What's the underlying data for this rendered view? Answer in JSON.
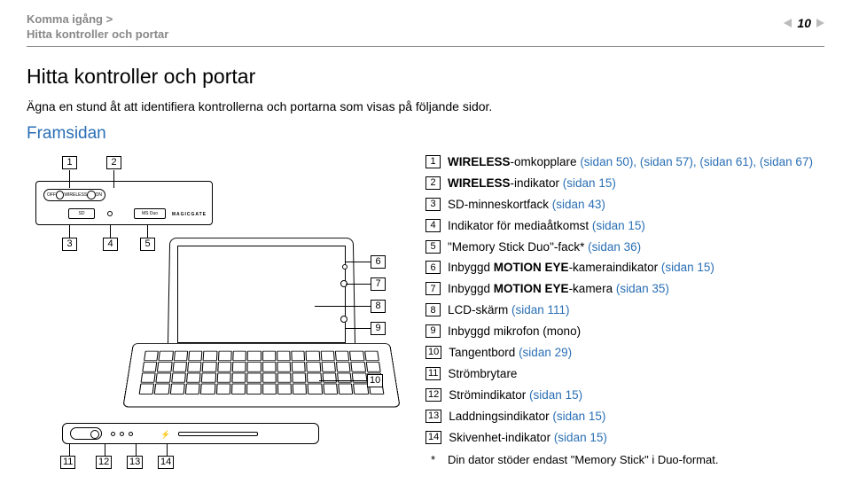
{
  "header": {
    "line1": "Komma igång >",
    "line2": "Hitta kontroller och portar",
    "page_number": "10"
  },
  "title": "Hitta kontroller och portar",
  "intro": "Ägna en stund åt att identifiera kontrollerna och portarna som visas på följande sidor.",
  "section": "Framsidan",
  "link_color": "#2a6fb5",
  "items": [
    {
      "n": "1",
      "pre": "",
      "b": "WIRELESS",
      "post": "-omkopplare ",
      "links": "(sidan 50), (sidan 57), (sidan 61), (sidan 67)"
    },
    {
      "n": "2",
      "pre": "",
      "b": "WIRELESS",
      "post": "-indikator ",
      "links": "(sidan 15)"
    },
    {
      "n": "3",
      "pre": "SD-minneskortfack ",
      "b": "",
      "post": "",
      "links": "(sidan 43)"
    },
    {
      "n": "4",
      "pre": "Indikator för mediaåtkomst ",
      "b": "",
      "post": "",
      "links": "(sidan 15)"
    },
    {
      "n": "5",
      "pre": "\"Memory Stick Duo\"-fack* ",
      "b": "",
      "post": "",
      "links": "(sidan 36)"
    },
    {
      "n": "6",
      "pre": "Inbyggd ",
      "b": "MOTION EYE",
      "post": "-kameraindikator ",
      "links": "(sidan 15)"
    },
    {
      "n": "7",
      "pre": "Inbyggd ",
      "b": "MOTION EYE",
      "post": "-kamera ",
      "links": "(sidan 35)"
    },
    {
      "n": "8",
      "pre": "LCD-skärm ",
      "b": "",
      "post": "",
      "links": "(sidan 111)"
    },
    {
      "n": "9",
      "pre": "Inbyggd mikrofon (mono)",
      "b": "",
      "post": "",
      "links": ""
    },
    {
      "n": "10",
      "pre": "Tangentbord ",
      "b": "",
      "post": "",
      "links": "(sidan 29)"
    },
    {
      "n": "11",
      "pre": "Strömbrytare",
      "b": "",
      "post": "",
      "links": ""
    },
    {
      "n": "12",
      "pre": "Strömindikator ",
      "b": "",
      "post": "",
      "links": "(sidan 15)"
    },
    {
      "n": "13",
      "pre": "Laddningsindikator ",
      "b": "",
      "post": "",
      "links": "(sidan 15)"
    },
    {
      "n": "14",
      "pre": "Skivenhet-indikator ",
      "b": "",
      "post": "",
      "links": "(sidan 15)"
    }
  ],
  "footnote": {
    "mark": "*",
    "text": "Din dator stöder endast \"Memory Stick\" i Duo-format."
  },
  "diagram_labels": {
    "off": "OFF",
    "on": "ON",
    "wireless": "WIRELESS",
    "sd": "SD",
    "ms": "MS Duo",
    "mg": "MAGICGATE"
  }
}
